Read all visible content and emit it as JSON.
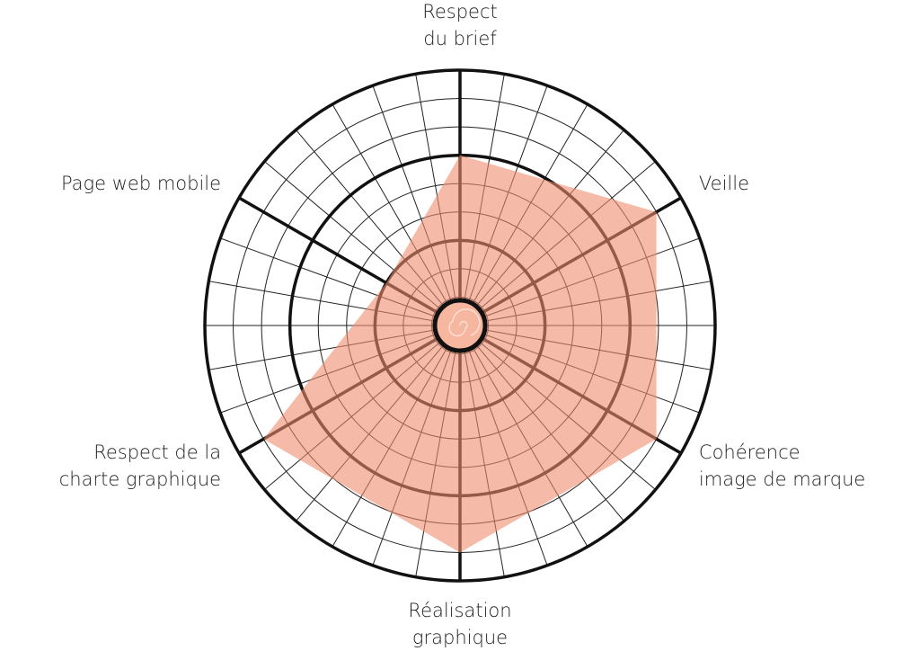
{
  "chart_data": {
    "type": "radar",
    "categories": [
      [
        "Respect",
        "du brief"
      ],
      [
        "Veille"
      ],
      [
        "Cohérence",
        "image de marque"
      ],
      [
        "Réalisation",
        "graphique"
      ],
      [
        "Respect de la",
        "charte graphique"
      ],
      [
        "Page web mobile"
      ]
    ],
    "values": [
      6,
      8,
      8,
      8,
      8,
      3
    ],
    "color": "#f08c6e",
    "ylim": [
      0,
      9
    ],
    "yticks": [
      3,
      6,
      9
    ],
    "minor_yticks": [
      1,
      2,
      4,
      5,
      7,
      8
    ],
    "grid": true
  }
}
